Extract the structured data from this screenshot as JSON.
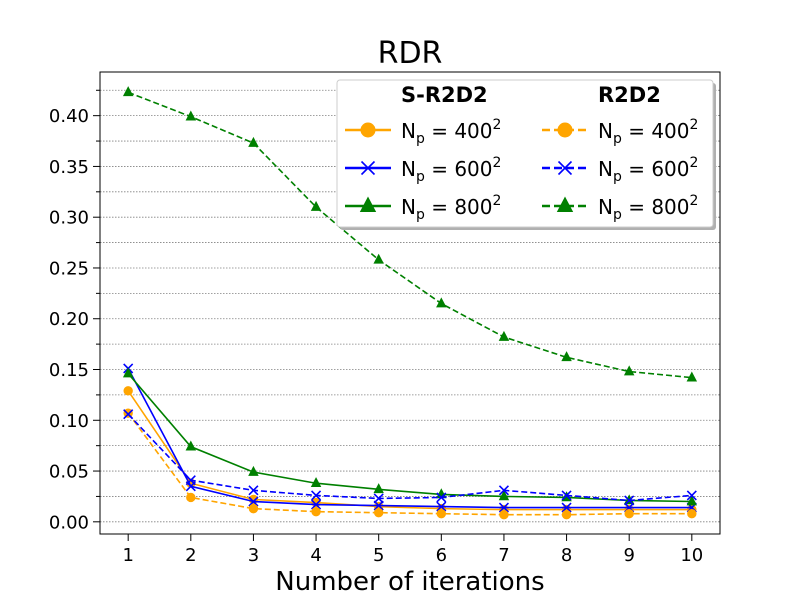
{
  "chart_data": {
    "type": "line",
    "title": "RDR",
    "xlabel": "Number of iterations",
    "ylabel": "",
    "x": [
      1,
      2,
      3,
      4,
      5,
      6,
      7,
      8,
      9,
      10
    ],
    "xlim": [
      0.55,
      10.45
    ],
    "ylim": [
      -0.012,
      0.443
    ],
    "x_ticks": [
      "1",
      "2",
      "3",
      "4",
      "5",
      "6",
      "7",
      "8",
      "9",
      "10"
    ],
    "y_ticks": [
      {
        "value": 0.0,
        "label": "0.00"
      },
      {
        "value": 0.05,
        "label": "0.05"
      },
      {
        "value": 0.1,
        "label": "0.10"
      },
      {
        "value": 0.15,
        "label": "0.15"
      },
      {
        "value": 0.2,
        "label": "0.20"
      },
      {
        "value": 0.25,
        "label": "0.25"
      },
      {
        "value": 0.3,
        "label": "0.30"
      },
      {
        "value": 0.35,
        "label": "0.35"
      },
      {
        "value": 0.4,
        "label": "0.40"
      }
    ],
    "grid": "horizontal dotted at major and minor ticks",
    "legend": {
      "placement": "top-right",
      "groups": [
        "S-R2D2",
        "R2D2"
      ]
    },
    "series": [
      {
        "name": "N_p = 400^2",
        "base": "400",
        "group": "S-R2D2",
        "color": "#ffa500",
        "linestyle": "solid",
        "marker": "circle",
        "values": [
          0.129,
          0.038,
          0.022,
          0.019,
          0.015,
          0.013,
          0.012,
          0.012,
          0.012,
          0.012
        ]
      },
      {
        "name": "N_p = 600^2",
        "base": "600",
        "group": "S-R2D2",
        "color": "#0000ff",
        "linestyle": "solid",
        "marker": "x",
        "values": [
          0.151,
          0.035,
          0.02,
          0.017,
          0.016,
          0.015,
          0.014,
          0.014,
          0.014,
          0.014
        ]
      },
      {
        "name": "N_p = 800^2",
        "base": "800",
        "group": "S-R2D2",
        "color": "#008000",
        "linestyle": "solid",
        "marker": "triangle",
        "values": [
          0.146,
          0.074,
          0.049,
          0.038,
          0.032,
          0.027,
          0.025,
          0.024,
          0.021,
          0.02
        ]
      },
      {
        "name": "N_p = 400^2",
        "base": "400",
        "group": "R2D2",
        "color": "#ffa500",
        "linestyle": "dashed",
        "marker": "circle",
        "values": [
          0.107,
          0.024,
          0.013,
          0.01,
          0.009,
          0.008,
          0.007,
          0.007,
          0.008,
          0.008
        ]
      },
      {
        "name": "N_p = 600^2",
        "base": "600",
        "group": "R2D2",
        "color": "#0000ff",
        "linestyle": "dashed",
        "marker": "x",
        "values": [
          0.106,
          0.041,
          0.031,
          0.026,
          0.023,
          0.024,
          0.031,
          0.026,
          0.021,
          0.026
        ]
      },
      {
        "name": "N_p = 800^2",
        "base": "800",
        "group": "R2D2",
        "color": "#008000",
        "linestyle": "dashed",
        "marker": "triangle",
        "values": [
          0.423,
          0.399,
          0.373,
          0.31,
          0.258,
          0.215,
          0.182,
          0.162,
          0.148,
          0.142
        ]
      }
    ]
  }
}
